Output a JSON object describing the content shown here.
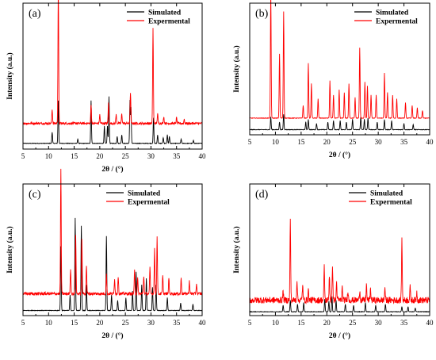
{
  "colors": {
    "simulated": "#000000",
    "experimental": "#ff0000"
  },
  "chart_data": [
    {
      "type": "line",
      "panel_label": "(a)",
      "xlabel": "2θ / (°)",
      "ylabel": "Intensity (a.u.)",
      "xlim": [
        5,
        40
      ],
      "xticks": [
        "5",
        "10",
        "15",
        "20",
        "25",
        "30",
        "35",
        "40"
      ],
      "grid": false,
      "legend_position": "top-right",
      "series": [
        {
          "name": "Simulated",
          "color": "#000000",
          "offset": 0.04,
          "noise": 0.002,
          "peaks": [
            [
              10.7,
              0.08
            ],
            [
              11.9,
              0.3
            ],
            [
              15.7,
              0.03
            ],
            [
              18.3,
              0.3
            ],
            [
              20.9,
              0.12
            ],
            [
              21.5,
              0.12
            ],
            [
              21.8,
              0.33
            ],
            [
              23.4,
              0.05
            ],
            [
              24.3,
              0.06
            ],
            [
              25.9,
              0.3
            ],
            [
              26.1,
              0.25
            ],
            [
              30.5,
              0.18
            ],
            [
              31.3,
              0.06
            ],
            [
              32.4,
              0.04
            ],
            [
              33.2,
              0.06
            ],
            [
              33.6,
              0.05
            ],
            [
              35.9,
              0.03
            ],
            [
              38.3,
              0.02
            ]
          ]
        },
        {
          "name": "Expermental",
          "color": "#ff0000",
          "offset": 0.18,
          "noise": 0.008,
          "peaks": [
            [
              10.7,
              0.1
            ],
            [
              11.9,
              0.98
            ],
            [
              18.3,
              0.13
            ],
            [
              20.0,
              0.06
            ],
            [
              21.7,
              0.14
            ],
            [
              23.2,
              0.06
            ],
            [
              24.3,
              0.07
            ],
            [
              26.0,
              0.22
            ],
            [
              30.4,
              0.67
            ],
            [
              31.3,
              0.07
            ],
            [
              32.5,
              0.05
            ],
            [
              35.0,
              0.04
            ],
            [
              36.5,
              0.03
            ]
          ]
        }
      ]
    },
    {
      "type": "line",
      "panel_label": "(b)",
      "xlabel": "2θ / (°)",
      "ylabel": "Intensity (a.u.)",
      "xlim": [
        5,
        40
      ],
      "xticks": [
        "5",
        "10",
        "15",
        "20",
        "25",
        "30",
        "35",
        "40"
      ],
      "grid": false,
      "legend_position": "top-right",
      "series": [
        {
          "name": "Simulated",
          "color": "#000000",
          "offset": 0.04,
          "noise": 0.002,
          "peaks": [
            [
              9.1,
              0.1
            ],
            [
              10.8,
              0.06
            ],
            [
              11.6,
              0.12
            ],
            [
              15.9,
              0.06
            ],
            [
              16.4,
              0.08
            ],
            [
              18.0,
              0.05
            ],
            [
              20.2,
              0.06
            ],
            [
              21.3,
              0.07
            ],
            [
              22.6,
              0.07
            ],
            [
              23.8,
              0.06
            ],
            [
              25.0,
              0.08
            ],
            [
              26.6,
              0.1
            ],
            [
              27.3,
              0.08
            ],
            [
              28.0,
              0.09
            ],
            [
              29.8,
              0.06
            ],
            [
              31.2,
              0.08
            ],
            [
              32.6,
              0.07
            ],
            [
              35.0,
              0.05
            ],
            [
              36.8,
              0.04
            ]
          ]
        },
        {
          "name": "Expermental",
          "color": "#ff0000",
          "offset": 0.13,
          "noise": 0.002,
          "peaks": [
            [
              9.1,
              1.0
            ],
            [
              10.8,
              0.5
            ],
            [
              11.6,
              0.83
            ],
            [
              15.4,
              0.1
            ],
            [
              16.4,
              0.43
            ],
            [
              17.0,
              0.27
            ],
            [
              18.3,
              0.15
            ],
            [
              20.6,
              0.29
            ],
            [
              21.3,
              0.18
            ],
            [
              22.4,
              0.22
            ],
            [
              23.4,
              0.2
            ],
            [
              24.3,
              0.27
            ],
            [
              25.5,
              0.16
            ],
            [
              26.4,
              0.55
            ],
            [
              27.4,
              0.28
            ],
            [
              27.9,
              0.25
            ],
            [
              28.6,
              0.18
            ],
            [
              29.6,
              0.18
            ],
            [
              31.2,
              0.35
            ],
            [
              31.8,
              0.2
            ],
            [
              32.8,
              0.18
            ],
            [
              33.6,
              0.15
            ],
            [
              35.3,
              0.12
            ],
            [
              36.6,
              0.1
            ],
            [
              37.6,
              0.08
            ],
            [
              38.6,
              0.06
            ]
          ]
        }
      ]
    },
    {
      "type": "line",
      "panel_label": "(c)",
      "xlabel": "2θ / (°)",
      "ylabel": "Intensity (a.u.)",
      "xlim": [
        5,
        40
      ],
      "xticks": [
        "5",
        "10",
        "15",
        "20",
        "25",
        "30",
        "35",
        "40"
      ],
      "grid": false,
      "legend_position": "top-center",
      "series": [
        {
          "name": "Simulated",
          "color": "#000000",
          "offset": 0.04,
          "noise": 0.002,
          "peaks": [
            [
              12.4,
              0.5
            ],
            [
              14.2,
              0.12
            ],
            [
              15.2,
              0.72
            ],
            [
              16.4,
              0.66
            ],
            [
              17.4,
              0.2
            ],
            [
              21.3,
              0.58
            ],
            [
              22.3,
              0.12
            ],
            [
              23.5,
              0.08
            ],
            [
              25.1,
              0.1
            ],
            [
              26.4,
              0.15
            ],
            [
              27.1,
              0.3
            ],
            [
              28.2,
              0.2
            ],
            [
              29.1,
              0.25
            ],
            [
              30.3,
              0.18
            ],
            [
              31.0,
              0.2
            ],
            [
              33.2,
              0.1
            ],
            [
              35.8,
              0.06
            ],
            [
              38.2,
              0.05
            ]
          ]
        },
        {
          "name": "Expermental",
          "color": "#ff0000",
          "offset": 0.17,
          "noise": 0.012,
          "peaks": [
            [
              12.4,
              0.97
            ],
            [
              14.3,
              0.2
            ],
            [
              15.3,
              0.45
            ],
            [
              16.5,
              0.42
            ],
            [
              17.4,
              0.22
            ],
            [
              21.3,
              0.15
            ],
            [
              22.9,
              0.12
            ],
            [
              23.6,
              0.14
            ],
            [
              26.8,
              0.18
            ],
            [
              27.4,
              0.12
            ],
            [
              28.6,
              0.14
            ],
            [
              29.8,
              0.2
            ],
            [
              30.7,
              0.35
            ],
            [
              31.2,
              0.44
            ],
            [
              32.3,
              0.14
            ],
            [
              33.5,
              0.12
            ],
            [
              35.9,
              0.12
            ],
            [
              37.5,
              0.1
            ],
            [
              38.9,
              0.08
            ]
          ]
        }
      ]
    },
    {
      "type": "line",
      "panel_label": "(d)",
      "xlabel": "2θ / (°)",
      "ylabel": "Intensity (a.u.)",
      "xlim": [
        5,
        40
      ],
      "xticks": [
        "5",
        "10",
        "15",
        "20",
        "25",
        "30",
        "35",
        "40"
      ],
      "grid": false,
      "legend_position": "top-right",
      "series": [
        {
          "name": "Simulated",
          "color": "#000000",
          "offset": 0.03,
          "noise": 0.002,
          "peaks": [
            [
              11.5,
              0.05
            ],
            [
              12.9,
              0.09
            ],
            [
              14.3,
              0.06
            ],
            [
              15.5,
              0.07
            ],
            [
              19.6,
              0.1
            ],
            [
              20.4,
              0.08
            ],
            [
              21.0,
              0.12
            ],
            [
              21.8,
              0.09
            ],
            [
              23.6,
              0.06
            ],
            [
              25.2,
              0.05
            ],
            [
              27.5,
              0.07
            ],
            [
              29.5,
              0.05
            ],
            [
              31.4,
              0.06
            ],
            [
              34.6,
              0.04
            ],
            [
              35.8,
              0.04
            ],
            [
              37.2,
              0.03
            ]
          ]
        },
        {
          "name": "Expermental",
          "color": "#ff0000",
          "offset": 0.12,
          "noise": 0.025,
          "peaks": [
            [
              11.5,
              0.07
            ],
            [
              12.9,
              0.62
            ],
            [
              14.2,
              0.16
            ],
            [
              15.3,
              0.12
            ],
            [
              16.4,
              0.08
            ],
            [
              19.5,
              0.26
            ],
            [
              20.5,
              0.2
            ],
            [
              21.1,
              0.28
            ],
            [
              21.9,
              0.14
            ],
            [
              23.0,
              0.1
            ],
            [
              24.1,
              0.08
            ],
            [
              26.4,
              0.08
            ],
            [
              27.7,
              0.12
            ],
            [
              28.5,
              0.09
            ],
            [
              31.3,
              0.1
            ],
            [
              34.6,
              0.47
            ],
            [
              36.2,
              0.1
            ],
            [
              37.5,
              0.06
            ]
          ]
        }
      ]
    }
  ]
}
